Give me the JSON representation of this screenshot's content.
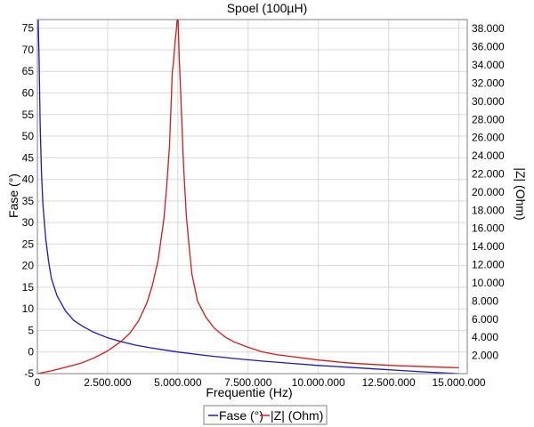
{
  "chart_data": {
    "type": "line",
    "title": "Spoel (100µH)",
    "xlabel": "Frequentie (Hz)",
    "ylabel_left": "Fase (°)",
    "ylabel_right": "|Z| (Ohm)",
    "xlim": [
      0,
      15300000
    ],
    "ylim_left": [
      -5,
      77
    ],
    "ylim_right": [
      0,
      39000
    ],
    "x_ticks": [
      0,
      2500000,
      5000000,
      7500000,
      10000000,
      12500000,
      15000000
    ],
    "x_tick_labels": [
      "0",
      "2.500.000",
      "5.000.000",
      "7.500.000",
      "10.000.000",
      "12.500.000",
      "15.000.000"
    ],
    "y_left_ticks": [
      -5,
      0,
      5,
      10,
      15,
      20,
      25,
      30,
      35,
      40,
      45,
      50,
      55,
      60,
      65,
      70,
      75
    ],
    "y_left_tick_labels": [
      "-5",
      "0",
      "5",
      "10",
      "15",
      "20",
      "25",
      "30",
      "35",
      "40",
      "45",
      "50",
      "55",
      "60",
      "65",
      "70",
      "75"
    ],
    "y_right_ticks": [
      2000,
      4000,
      6000,
      8000,
      10000,
      12000,
      14000,
      16000,
      18000,
      20000,
      22000,
      24000,
      26000,
      28000,
      30000,
      32000,
      34000,
      36000,
      38000
    ],
    "y_right_tick_labels": [
      "2.000",
      "4.000",
      "6.000",
      "8.000",
      "10.000",
      "12.000",
      "14.000",
      "16.000",
      "18.000",
      "20.000",
      "22.000",
      "24.000",
      "26.000",
      "28.000",
      "30.000",
      "32.000",
      "34.000",
      "36.000",
      "38.000"
    ],
    "grid": true,
    "legend_position": "bottom-center",
    "series": [
      {
        "name": "Fase (°)",
        "axis": "left",
        "color": "#1a1ab0",
        "x": [
          30000,
          60000,
          100000,
          150000,
          200000,
          300000,
          400000,
          500000,
          700000,
          1000000,
          1300000,
          1600000,
          2000000,
          2500000,
          3000000,
          3500000,
          4000000,
          4500000,
          5000000,
          6000000,
          7000000,
          8000000,
          9000000,
          10000000,
          11000000,
          12000000,
          13000000,
          14000000,
          15000000
        ],
        "y": [
          77,
          68,
          52,
          41,
          34,
          26,
          21,
          17,
          13,
          9.5,
          7.3,
          6,
          4.6,
          3.3,
          2.4,
          1.6,
          1,
          0.5,
          0,
          -0.8,
          -1.5,
          -2.1,
          -2.6,
          -3.1,
          -3.5,
          -3.9,
          -4.3,
          -4.7,
          -5
        ]
      },
      {
        "name": "|Z| (Ohm)",
        "axis": "right",
        "color": "#d11a1a",
        "x": [
          0,
          500000,
          1000000,
          1500000,
          2000000,
          2500000,
          3000000,
          3300000,
          3600000,
          3900000,
          4100000,
          4300000,
          4500000,
          4600000,
          4700000,
          4750000,
          4800000,
          4850000,
          4900000,
          4950000,
          5000000,
          5030000,
          5060000,
          5100000,
          5150000,
          5200000,
          5300000,
          5400000,
          5500000,
          5700000,
          6000000,
          6300000,
          6700000,
          7000000,
          7500000,
          8000000,
          8500000,
          9000000,
          10000000,
          11000000,
          12000000,
          13000000,
          14000000,
          15000000
        ],
        "y": [
          0,
          300,
          700,
          1100,
          1700,
          2500,
          3600,
          4500,
          5800,
          7800,
          9800,
          12500,
          17000,
          20500,
          25000,
          29000,
          33000,
          34500,
          36500,
          38000,
          40000,
          36500,
          34000,
          31000,
          27000,
          23000,
          17500,
          14000,
          11000,
          8000,
          6200,
          5000,
          4000,
          3500,
          2900,
          2400,
          2100,
          1900,
          1500,
          1200,
          1000,
          850,
          750,
          650
        ]
      }
    ]
  }
}
